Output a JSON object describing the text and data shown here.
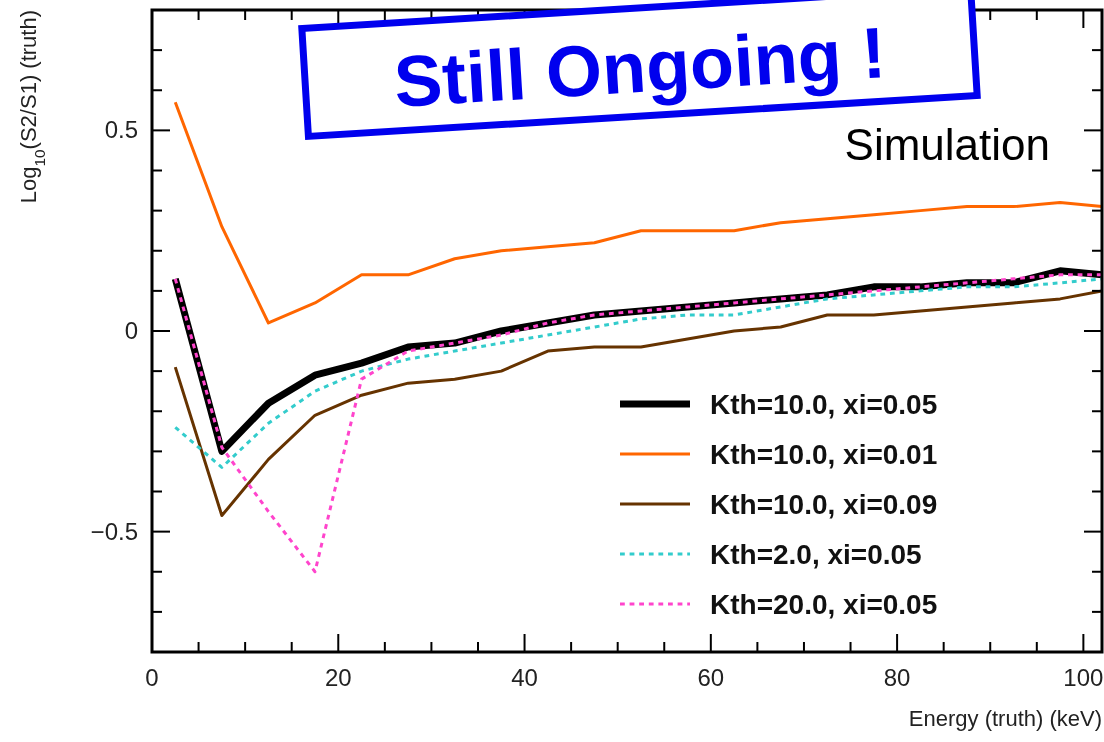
{
  "chart_data": {
    "type": "line",
    "xlabel": "Energy (truth) (keV)",
    "ylabel": "Log$_{10}$(S2/S1) (truth)",
    "annotations": [
      "Still Ongoing !",
      "Simulation"
    ],
    "x": [
      2.5,
      7.5,
      12.5,
      17.5,
      22.5,
      27.5,
      32.5,
      37.5,
      42.5,
      47.5,
      52.5,
      57.5,
      62.5,
      67.5,
      72.5,
      77.5,
      82.5,
      87.5,
      92.5,
      97.5,
      102
    ],
    "xlim": [
      0,
      102
    ],
    "ylim": [
      -0.8,
      0.8
    ],
    "xticks": [
      0,
      {
        "value": 5,
        "label": null
      },
      {
        "value": 10,
        "label": null
      },
      {
        "value": 15,
        "label": null
      },
      20,
      {
        "value": 25,
        "label": null
      },
      {
        "value": 30,
        "label": null
      },
      {
        "value": 35,
        "label": null
      },
      40,
      {
        "value": 45,
        "label": null
      },
      {
        "value": 50,
        "label": null
      },
      {
        "value": 55,
        "label": null
      },
      60,
      {
        "value": 65,
        "label": null
      },
      {
        "value": 70,
        "label": null
      },
      {
        "value": 75,
        "label": null
      },
      80,
      {
        "value": 85,
        "label": null
      },
      {
        "value": 90,
        "label": null
      },
      {
        "value": 95,
        "label": null
      },
      100
    ],
    "yticks": [
      {
        "value": -0.7,
        "label": null
      },
      {
        "value": -0.6,
        "label": null
      },
      {
        "value": -0.5,
        "label": "−0.5"
      },
      {
        "value": -0.4,
        "label": null
      },
      {
        "value": -0.3,
        "label": null
      },
      {
        "value": -0.2,
        "label": null
      },
      {
        "value": -0.1,
        "label": null
      },
      0,
      {
        "value": 0.1,
        "label": null
      },
      {
        "value": 0.2,
        "label": null
      },
      {
        "value": 0.3,
        "label": null
      },
      {
        "value": 0.4,
        "label": null
      },
      0.5,
      {
        "value": 0.6,
        "label": null
      },
      {
        "value": 0.7,
        "label": null
      }
    ],
    "grid": false,
    "legend": "bottom right",
    "series": [
      {
        "name": "Kth=10.0, xi=0.05",
        "color": "#000000",
        "line_style": "solid",
        "values": [
          0.13,
          -0.3,
          -0.18,
          -0.11,
          -0.08,
          -0.04,
          -0.03,
          0.0,
          0.02,
          0.04,
          0.05,
          0.06,
          0.07,
          0.08,
          0.09,
          0.11,
          0.11,
          0.12,
          0.12,
          0.15,
          0.14
        ]
      },
      {
        "name": "Kth=10.0, xi=0.01",
        "color": "#ff6600",
        "line_style": "solid",
        "values": [
          0.57,
          0.26,
          0.02,
          0.07,
          0.14,
          0.14,
          0.18,
          0.2,
          0.21,
          0.22,
          0.25,
          0.25,
          0.25,
          0.27,
          0.28,
          0.29,
          0.3,
          0.31,
          0.31,
          0.32,
          0.31
        ]
      },
      {
        "name": "Kth=10.0, xi=0.09",
        "color": "#663300",
        "line_style": "solid",
        "values": [
          -0.09,
          -0.46,
          -0.32,
          -0.21,
          -0.16,
          -0.13,
          -0.12,
          -0.1,
          -0.05,
          -0.04,
          -0.04,
          -0.02,
          0.0,
          0.01,
          0.04,
          0.04,
          0.05,
          0.06,
          0.07,
          0.08,
          0.1
        ]
      },
      {
        "name": "Kth=2.0, xi=0.05",
        "color": "#33cccc",
        "line_style": "dotted",
        "values": [
          -0.24,
          -0.34,
          -0.23,
          -0.15,
          -0.1,
          -0.07,
          -0.05,
          -0.03,
          -0.01,
          0.01,
          0.03,
          0.04,
          0.04,
          0.06,
          0.08,
          0.09,
          0.1,
          0.11,
          0.11,
          0.12,
          0.13
        ]
      },
      {
        "name": "Kth=20.0, xi=0.05",
        "color": "#ff44cc",
        "line_style": "dotted",
        "values": [
          0.13,
          -0.29,
          -0.45,
          -0.6,
          -0.12,
          -0.05,
          -0.03,
          -0.01,
          0.02,
          0.04,
          0.05,
          0.06,
          0.07,
          0.08,
          0.09,
          0.1,
          0.11,
          0.12,
          0.13,
          0.14,
          0.14
        ]
      }
    ]
  }
}
